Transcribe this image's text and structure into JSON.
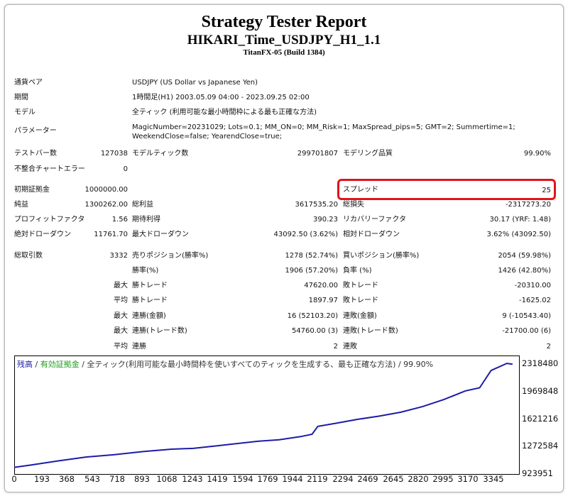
{
  "report": {
    "title": "Strategy Tester Report",
    "subtitle": "HIKARI_Time_USDJPY_H1_1.1",
    "server": "TitanFX-05 (Build 1384)"
  },
  "info": {
    "pair_label": "通貨ペア",
    "pair_value": "USDJPY (US Dollar vs Japanese Yen)",
    "period_label": "期間",
    "period_value": "1時間足(H1) 2003.05.09 04:00 - 2023.09.25 02:00",
    "model_label": "モデル",
    "model_value": "全ティック (利用可能な最小時間枠による最も正確な方法)",
    "params_label": "パラメーター",
    "params_value": "MagicNumber=20231029; Lots=0.1; MM_ON=0; MM_Risk=1; MaxSpread_pips=5; GMT=2; Summertime=1; WeekendClose=false; YearendClose=true;"
  },
  "stats": {
    "bars_label": "テストバー数",
    "bars_value": "127038",
    "ticks_label": "モデルティック数",
    "ticks_value": "299701807",
    "quality_label": "モデリング品質",
    "quality_value": "99.90%",
    "mismatch_label": "不整合チャートエラー",
    "mismatch_value": "0",
    "deposit_label": "初期証拠金",
    "deposit_value": "1000000.00",
    "spread_label": "スプレッド",
    "spread_value": "25",
    "net_label": "純益",
    "net_value": "1300262.00",
    "gross_profit_label": "総利益",
    "gross_profit_value": "3617535.20",
    "gross_loss_label": "総損失",
    "gross_loss_value": "-2317273.20",
    "pf_label": "プロフィットファクタ",
    "pf_value": "1.56",
    "expected_label": "期待利得",
    "expected_value": "390.23",
    "recovery_label": "リカバリーファクタ",
    "recovery_value": "30.17 (YRF: 1.48)",
    "abs_dd_label": "絶対ドローダウン",
    "abs_dd_value": "11761.70",
    "max_dd_label": "最大ドローダウン",
    "max_dd_value": "43092.50 (3.62%)",
    "rel_dd_label": "相対ドローダウン",
    "rel_dd_value": "3.62% (43092.50)",
    "trades_label": "総取引数",
    "trades_value": "3332",
    "short_label": "売りポジション(勝率%)",
    "short_value": "1278 (52.74%)",
    "long_label": "買いポジション(勝率%)",
    "long_value": "2054 (59.98%)",
    "winrate_label": "勝率(%)",
    "winrate_value": "1906 (57.20%)",
    "lossrate_label": "負率 (%)",
    "lossrate_value": "1426 (42.80%)",
    "max_label": "最大",
    "avg_label": "平均",
    "max_win_label": "勝トレード",
    "max_win_value": "47620.00",
    "max_loss_label": "敗トレード",
    "max_loss_value": "-20310.00",
    "avg_win_label": "勝トレード",
    "avg_win_value": "1897.97",
    "avg_loss_label": "敗トレード",
    "avg_loss_value": "-1625.02",
    "cons_win_money_label": "連勝(金額)",
    "cons_win_money_value": "16 (52103.20)",
    "cons_loss_money_label": "連敗(金額)",
    "cons_loss_money_value": "9 (-10543.40)",
    "cons_win_trades_label": "連勝(トレード数)",
    "cons_win_trades_value": "54760.00 (3)",
    "cons_loss_trades_label": "連敗(トレード数)",
    "cons_loss_trades_value": "-21700.00 (6)",
    "avg_cons_win_label": "連勝",
    "avg_cons_win_value": "2",
    "avg_cons_loss_label": "連敗",
    "avg_cons_loss_value": "2"
  },
  "chart_legend": {
    "balance": "残高",
    "sep1": " / ",
    "equity": "有効証拠金",
    "sep2": " / ",
    "model": "全ティック(利用可能な最小時間枠を使いすべてのティックを生成する、最も正確な方法) / 99.90%"
  },
  "colors": {
    "line": "#1c1ca8",
    "highlight": "#e0141e"
  },
  "chart_data": {
    "type": "line",
    "y_ticks": [
      "2318480",
      "1969848",
      "1621216",
      "1272584",
      "923951"
    ],
    "y_tick_values": [
      2318480,
      1969848,
      1621216,
      1272584,
      923951
    ],
    "ylim": [
      923951,
      2420000
    ],
    "x_ticks": [
      "0",
      "193",
      "368",
      "543",
      "718",
      "893",
      "1068",
      "1243",
      "1419",
      "1594",
      "1769",
      "1944",
      "2119",
      "2294",
      "2469",
      "2645",
      "2820",
      "2995",
      "3170",
      "3345"
    ],
    "xlim": [
      0,
      3520
    ],
    "series": [
      {
        "x": [
          0,
          120,
          300,
          500,
          700,
          900,
          1100,
          1250,
          1400,
          1550,
          1700,
          1850,
          2000,
          2080,
          2120,
          2250,
          2400,
          2550,
          2700,
          2850,
          3000,
          3150,
          3250,
          3330,
          3440,
          3480
        ],
        "y": [
          1000000,
          1030000,
          1080000,
          1130000,
          1160000,
          1200000,
          1230000,
          1240000,
          1270000,
          1300000,
          1330000,
          1350000,
          1390000,
          1420000,
          1520000,
          1560000,
          1610000,
          1650000,
          1700000,
          1770000,
          1860000,
          1970000,
          2010000,
          2230000,
          2320000,
          2310000
        ]
      }
    ]
  }
}
